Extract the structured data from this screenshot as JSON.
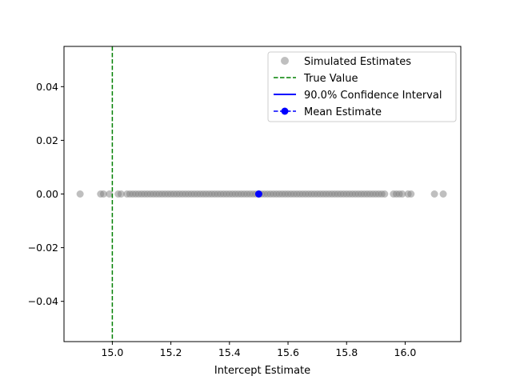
{
  "chart_data": {
    "type": "scatter",
    "title": "",
    "xlabel": "Intercept Estimate",
    "ylabel": "",
    "xlim": [
      14.835,
      16.19
    ],
    "ylim": [
      -0.055,
      0.055
    ],
    "x_ticks": [
      15.0,
      15.2,
      15.4,
      15.6,
      15.8,
      16.0
    ],
    "x_tick_labels": [
      "15.0",
      "15.2",
      "15.4",
      "15.6",
      "15.8",
      "16.0"
    ],
    "y_ticks": [
      0.04,
      0.02,
      0.0,
      -0.02,
      -0.04
    ],
    "y_tick_labels": [
      "0.04",
      "0.02",
      "0.00",
      "−0.02",
      "−0.04"
    ],
    "grid": false,
    "legend_position": "top-right",
    "series": [
      {
        "name": "Simulated Estimates",
        "kind": "scatter",
        "color": "#808080",
        "y": 0.0,
        "x": [
          14.89,
          14.96,
          14.97,
          14.99,
          15.02,
          15.03,
          15.05,
          15.06,
          15.07,
          15.08,
          15.09,
          15.1,
          15.11,
          15.12,
          15.13,
          15.14,
          15.15,
          15.16,
          15.17,
          15.18,
          15.19,
          15.2,
          15.21,
          15.22,
          15.23,
          15.24,
          15.25,
          15.26,
          15.27,
          15.28,
          15.29,
          15.3,
          15.31,
          15.32,
          15.33,
          15.34,
          15.35,
          15.36,
          15.37,
          15.38,
          15.39,
          15.4,
          15.41,
          15.42,
          15.43,
          15.44,
          15.45,
          15.46,
          15.47,
          15.48,
          15.49,
          15.5,
          15.51,
          15.52,
          15.53,
          15.54,
          15.55,
          15.56,
          15.57,
          15.58,
          15.59,
          15.6,
          15.61,
          15.62,
          15.63,
          15.64,
          15.65,
          15.66,
          15.67,
          15.68,
          15.69,
          15.7,
          15.71,
          15.72,
          15.73,
          15.74,
          15.75,
          15.76,
          15.77,
          15.78,
          15.79,
          15.8,
          15.81,
          15.82,
          15.83,
          15.84,
          15.85,
          15.86,
          15.87,
          15.88,
          15.89,
          15.9,
          15.91,
          15.92,
          15.93,
          15.96,
          15.97,
          15.98,
          15.99,
          16.01,
          16.02,
          16.1,
          16.13
        ]
      },
      {
        "name": "True Value",
        "kind": "vline",
        "color": "#008000",
        "x": 15.0
      },
      {
        "name": "90.0% Confidence Interval",
        "kind": "interval",
        "color": "#0000ff"
      },
      {
        "name": "Mean Estimate",
        "kind": "point",
        "color": "#0000ff",
        "x": 15.5,
        "y": 0.0
      }
    ]
  }
}
